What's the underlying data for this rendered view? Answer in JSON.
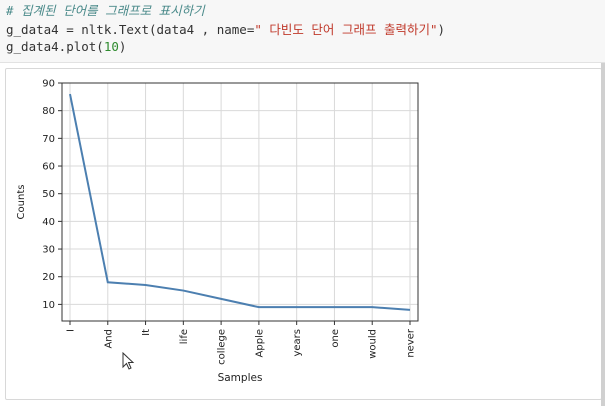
{
  "code": {
    "comment": "# 집계된 단어를 그래프로 표시하기",
    "line2_prefix": "g_data4 = nltk.Text(data4 , name=",
    "line2_string": "\" 다빈도 단어 그래프 출력하기\"",
    "line2_suffix": ")",
    "line3_prefix": "g_data4.plot(",
    "line3_number": "10",
    "line3_suffix": ")"
  },
  "chart_data": {
    "type": "line",
    "categories": [
      "I",
      "And",
      "It",
      "life",
      "college",
      "Apple",
      "years",
      "one",
      "would",
      "never"
    ],
    "values": [
      86,
      18,
      17,
      15,
      12,
      9,
      9,
      9,
      9,
      8
    ],
    "xlabel": "Samples",
    "ylabel": "Counts",
    "ylim": [
      4,
      90
    ],
    "yticks": [
      10,
      20,
      30,
      40,
      50,
      60,
      70,
      80,
      90
    ],
    "grid": true,
    "line_color": "#4c7fb0"
  }
}
